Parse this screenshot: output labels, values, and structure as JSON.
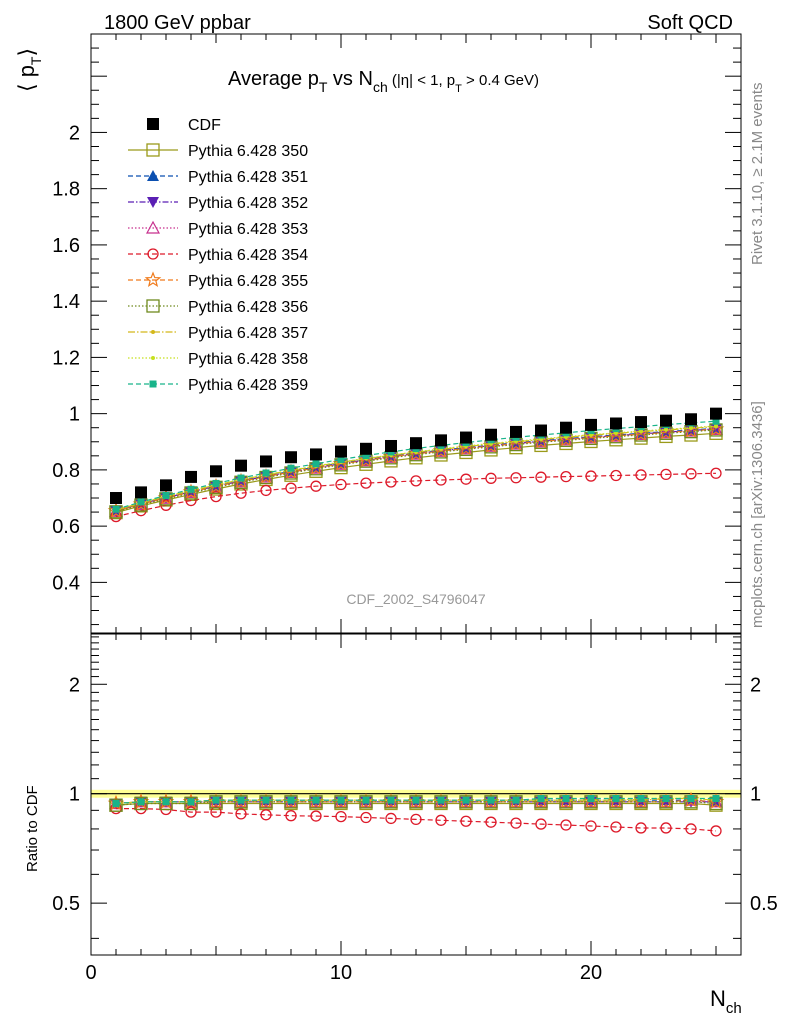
{
  "header": {
    "left": "1800 GeV ppbar",
    "right": "Soft QCD"
  },
  "side_labels": {
    "rivet": "Rivet 3.1.10, ≥ 2.1M events",
    "mcplots": "mcplots.cern.ch [arXiv:1306.3436]"
  },
  "watermark": "CDF_2002_S4796047",
  "chart_data": [
    {
      "type": "scatter",
      "title": {
        "main": "Average p",
        "sub1": "T",
        "mid": " vs N",
        "sub2": "ch",
        "cut_a": " (|η| < 1, p",
        "cut_sub": "T",
        "cut_b": " > 0.4 GeV)"
      },
      "ylabel": {
        "main": "⟨ p",
        "sub": "T",
        "close": "⟩"
      },
      "xlim": [
        0,
        26
      ],
      "ylim": [
        0.22,
        2.35
      ],
      "yticks": [
        0.4,
        0.6,
        0.8,
        1.0,
        1.2,
        1.4,
        1.6,
        1.8,
        2.0
      ],
      "ytick_labels": [
        "0.4",
        "0.6",
        "0.8",
        "1",
        "1.2",
        "1.4",
        "1.6",
        "1.8",
        "2"
      ],
      "x": [
        1,
        2,
        3,
        4,
        5,
        6,
        7,
        8,
        9,
        10,
        11,
        12,
        13,
        14,
        15,
        16,
        17,
        18,
        19,
        20,
        21,
        22,
        23,
        24,
        25
      ],
      "data": {
        "name": "CDF",
        "color": "#000000",
        "marker": "filled-square",
        "values": [
          0.7,
          0.72,
          0.745,
          0.775,
          0.795,
          0.815,
          0.83,
          0.845,
          0.855,
          0.865,
          0.875,
          0.885,
          0.895,
          0.905,
          0.915,
          0.925,
          0.935,
          0.94,
          0.95,
          0.96,
          0.965,
          0.97,
          0.975,
          0.98,
          1.0
        ]
      },
      "series": [
        {
          "name": "Pythia 6.428 350",
          "color": "#9a9a1a",
          "dash": "",
          "marker": "open-square",
          "values": [
            0.648,
            0.672,
            0.693,
            0.713,
            0.732,
            0.75,
            0.766,
            0.781,
            0.795,
            0.808,
            0.82,
            0.832,
            0.843,
            0.853,
            0.862,
            0.871,
            0.879,
            0.887,
            0.894,
            0.901,
            0.907,
            0.913,
            0.919,
            0.924,
            0.93
          ]
        },
        {
          "name": "Pythia 6.428 351",
          "color": "#0b4fb0",
          "dash": "5,3",
          "marker": "filled-triangle-up",
          "values": [
            0.655,
            0.68,
            0.702,
            0.723,
            0.743,
            0.762,
            0.779,
            0.795,
            0.81,
            0.824,
            0.837,
            0.849,
            0.86,
            0.87,
            0.879,
            0.888,
            0.896,
            0.904,
            0.911,
            0.918,
            0.924,
            0.93,
            0.936,
            0.942,
            0.948
          ]
        },
        {
          "name": "Pythia 6.428 352",
          "color": "#5a1fb4",
          "dash": "6,2,1.5,2",
          "marker": "filled-triangle-down",
          "values": [
            0.655,
            0.679,
            0.701,
            0.722,
            0.742,
            0.76,
            0.777,
            0.793,
            0.808,
            0.822,
            0.835,
            0.847,
            0.858,
            0.868,
            0.877,
            0.886,
            0.894,
            0.902,
            0.909,
            0.916,
            0.922,
            0.928,
            0.934,
            0.94,
            0.946
          ]
        },
        {
          "name": "Pythia 6.428 353",
          "color": "#c7308e",
          "dash": "1.5,2",
          "marker": "open-triangle-up",
          "values": [
            0.653,
            0.677,
            0.699,
            0.72,
            0.74,
            0.758,
            0.775,
            0.791,
            0.806,
            0.82,
            0.833,
            0.845,
            0.856,
            0.866,
            0.875,
            0.884,
            0.892,
            0.9,
            0.907,
            0.914,
            0.92,
            0.926,
            0.932,
            0.938,
            0.944
          ]
        },
        {
          "name": "Pythia 6.428 354",
          "color": "#dd1a2a",
          "dash": "5,3",
          "marker": "open-circle",
          "values": [
            0.634,
            0.655,
            0.674,
            0.691,
            0.705,
            0.717,
            0.727,
            0.735,
            0.742,
            0.748,
            0.753,
            0.757,
            0.761,
            0.764,
            0.767,
            0.77,
            0.772,
            0.774,
            0.776,
            0.778,
            0.78,
            0.782,
            0.784,
            0.786,
            0.788
          ]
        },
        {
          "name": "Pythia 6.428 355",
          "color": "#f07b1c",
          "dash": "5,3",
          "marker": "open-star",
          "values": [
            0.654,
            0.678,
            0.7,
            0.721,
            0.741,
            0.759,
            0.776,
            0.792,
            0.807,
            0.821,
            0.834,
            0.846,
            0.857,
            0.867,
            0.876,
            0.885,
            0.893,
            0.901,
            0.908,
            0.915,
            0.921,
            0.927,
            0.933,
            0.939,
            0.945
          ]
        },
        {
          "name": "Pythia 6.428 356",
          "color": "#6f8a1e",
          "dash": "1.5,2",
          "marker": "open-square",
          "values": [
            0.651,
            0.675,
            0.697,
            0.718,
            0.738,
            0.756,
            0.773,
            0.789,
            0.804,
            0.818,
            0.831,
            0.843,
            0.854,
            0.864,
            0.873,
            0.882,
            0.89,
            0.898,
            0.905,
            0.912,
            0.918,
            0.924,
            0.93,
            0.936,
            0.942
          ]
        },
        {
          "name": "Pythia 6.428 357",
          "color": "#d4b81a",
          "dash": "7,2,1.5,2",
          "marker": "small-dot",
          "values": [
            0.657,
            0.682,
            0.705,
            0.726,
            0.746,
            0.765,
            0.782,
            0.798,
            0.813,
            0.827,
            0.84,
            0.852,
            0.863,
            0.873,
            0.883,
            0.892,
            0.9,
            0.908,
            0.916,
            0.923,
            0.93,
            0.936,
            0.942,
            0.948,
            0.954
          ]
        },
        {
          "name": "Pythia 6.428 358",
          "color": "#c6e01e",
          "dash": "1.5,2",
          "marker": "small-dot",
          "values": [
            0.658,
            0.683,
            0.706,
            0.727,
            0.747,
            0.766,
            0.783,
            0.799,
            0.814,
            0.828,
            0.841,
            0.853,
            0.864,
            0.875,
            0.885,
            0.894,
            0.902,
            0.91,
            0.918,
            0.925,
            0.932,
            0.938,
            0.944,
            0.95,
            0.956
          ]
        },
        {
          "name": "Pythia 6.428 359",
          "color": "#19b48a",
          "dash": "5,3",
          "marker": "filled-square-small",
          "values": [
            0.66,
            0.686,
            0.709,
            0.731,
            0.752,
            0.771,
            0.789,
            0.806,
            0.822,
            0.837,
            0.851,
            0.864,
            0.876,
            0.887,
            0.897,
            0.907,
            0.916,
            0.924,
            0.932,
            0.94,
            0.947,
            0.954,
            0.961,
            0.967,
            0.973
          ]
        }
      ]
    },
    {
      "type": "line",
      "ylabel": "Ratio to CDF",
      "scale": "log",
      "xlim": [
        0,
        26
      ],
      "ylim": [
        0.36,
        2.75
      ],
      "yticks": [
        0.5,
        1,
        2
      ],
      "ytick_labels": [
        "0.5",
        "1",
        "2"
      ],
      "xticks": [
        0,
        10,
        20
      ],
      "xtick_labels": [
        "0",
        "10",
        "20"
      ],
      "xlabel": {
        "main": "N",
        "sub": "ch"
      },
      "reference": 1,
      "reference_band_color": "#ffff66",
      "x": [
        1,
        2,
        3,
        4,
        5,
        6,
        7,
        8,
        9,
        10,
        11,
        12,
        13,
        14,
        15,
        16,
        17,
        18,
        19,
        20,
        21,
        22,
        23,
        24,
        25
      ],
      "series": [
        {
          "name": "Pythia 6.428 350",
          "values": [
            0.93,
            0.94,
            0.94,
            0.94,
            0.94,
            0.94,
            0.94,
            0.94,
            0.94,
            0.94,
            0.94,
            0.94,
            0.94,
            0.94,
            0.94,
            0.94,
            0.94,
            0.94,
            0.94,
            0.94,
            0.94,
            0.94,
            0.94,
            0.94,
            0.93
          ]
        },
        {
          "name": "Pythia 6.428 351",
          "values": [
            0.94,
            0.95,
            0.95,
            0.95,
            0.96,
            0.96,
            0.96,
            0.96,
            0.96,
            0.96,
            0.96,
            0.96,
            0.96,
            0.96,
            0.96,
            0.96,
            0.96,
            0.96,
            0.96,
            0.96,
            0.96,
            0.96,
            0.96,
            0.96,
            0.95
          ]
        },
        {
          "name": "Pythia 6.428 352",
          "values": [
            0.94,
            0.95,
            0.95,
            0.95,
            0.95,
            0.95,
            0.95,
            0.95,
            0.95,
            0.95,
            0.95,
            0.95,
            0.95,
            0.95,
            0.95,
            0.95,
            0.95,
            0.95,
            0.95,
            0.95,
            0.95,
            0.95,
            0.95,
            0.95,
            0.95
          ]
        },
        {
          "name": "Pythia 6.428 353",
          "values": [
            0.94,
            0.95,
            0.95,
            0.95,
            0.95,
            0.95,
            0.95,
            0.95,
            0.95,
            0.95,
            0.95,
            0.95,
            0.95,
            0.95,
            0.95,
            0.95,
            0.95,
            0.95,
            0.95,
            0.95,
            0.95,
            0.95,
            0.95,
            0.96,
            0.95
          ]
        },
        {
          "name": "Pythia 6.428 354",
          "values": [
            0.91,
            0.91,
            0.905,
            0.89,
            0.89,
            0.88,
            0.875,
            0.87,
            0.868,
            0.865,
            0.86,
            0.855,
            0.85,
            0.845,
            0.84,
            0.835,
            0.83,
            0.825,
            0.82,
            0.815,
            0.81,
            0.805,
            0.805,
            0.8,
            0.79
          ]
        },
        {
          "name": "Pythia 6.428 355",
          "values": [
            0.94,
            0.95,
            0.95,
            0.95,
            0.95,
            0.95,
            0.95,
            0.95,
            0.95,
            0.95,
            0.95,
            0.95,
            0.95,
            0.95,
            0.95,
            0.95,
            0.95,
            0.95,
            0.95,
            0.95,
            0.95,
            0.95,
            0.95,
            0.96,
            0.95
          ]
        },
        {
          "name": "Pythia 6.428 356",
          "values": [
            0.93,
            0.94,
            0.94,
            0.94,
            0.95,
            0.95,
            0.95,
            0.95,
            0.95,
            0.95,
            0.95,
            0.95,
            0.95,
            0.95,
            0.95,
            0.95,
            0.95,
            0.95,
            0.95,
            0.95,
            0.95,
            0.95,
            0.95,
            0.95,
            0.94
          ]
        },
        {
          "name": "Pythia 6.428 357",
          "values": [
            0.94,
            0.95,
            0.95,
            0.95,
            0.96,
            0.96,
            0.96,
            0.96,
            0.96,
            0.96,
            0.96,
            0.96,
            0.96,
            0.96,
            0.96,
            0.96,
            0.96,
            0.96,
            0.96,
            0.96,
            0.96,
            0.96,
            0.97,
            0.97,
            0.96
          ]
        },
        {
          "name": "Pythia 6.428 358",
          "values": [
            0.94,
            0.95,
            0.95,
            0.95,
            0.96,
            0.96,
            0.96,
            0.96,
            0.96,
            0.96,
            0.96,
            0.96,
            0.96,
            0.96,
            0.96,
            0.96,
            0.96,
            0.96,
            0.96,
            0.96,
            0.96,
            0.97,
            0.97,
            0.97,
            0.96
          ]
        },
        {
          "name": "Pythia 6.428 359",
          "values": [
            0.94,
            0.95,
            0.95,
            0.95,
            0.96,
            0.96,
            0.96,
            0.96,
            0.96,
            0.96,
            0.96,
            0.96,
            0.96,
            0.96,
            0.96,
            0.96,
            0.96,
            0.97,
            0.97,
            0.97,
            0.97,
            0.97,
            0.97,
            0.97,
            0.97
          ]
        }
      ]
    }
  ]
}
